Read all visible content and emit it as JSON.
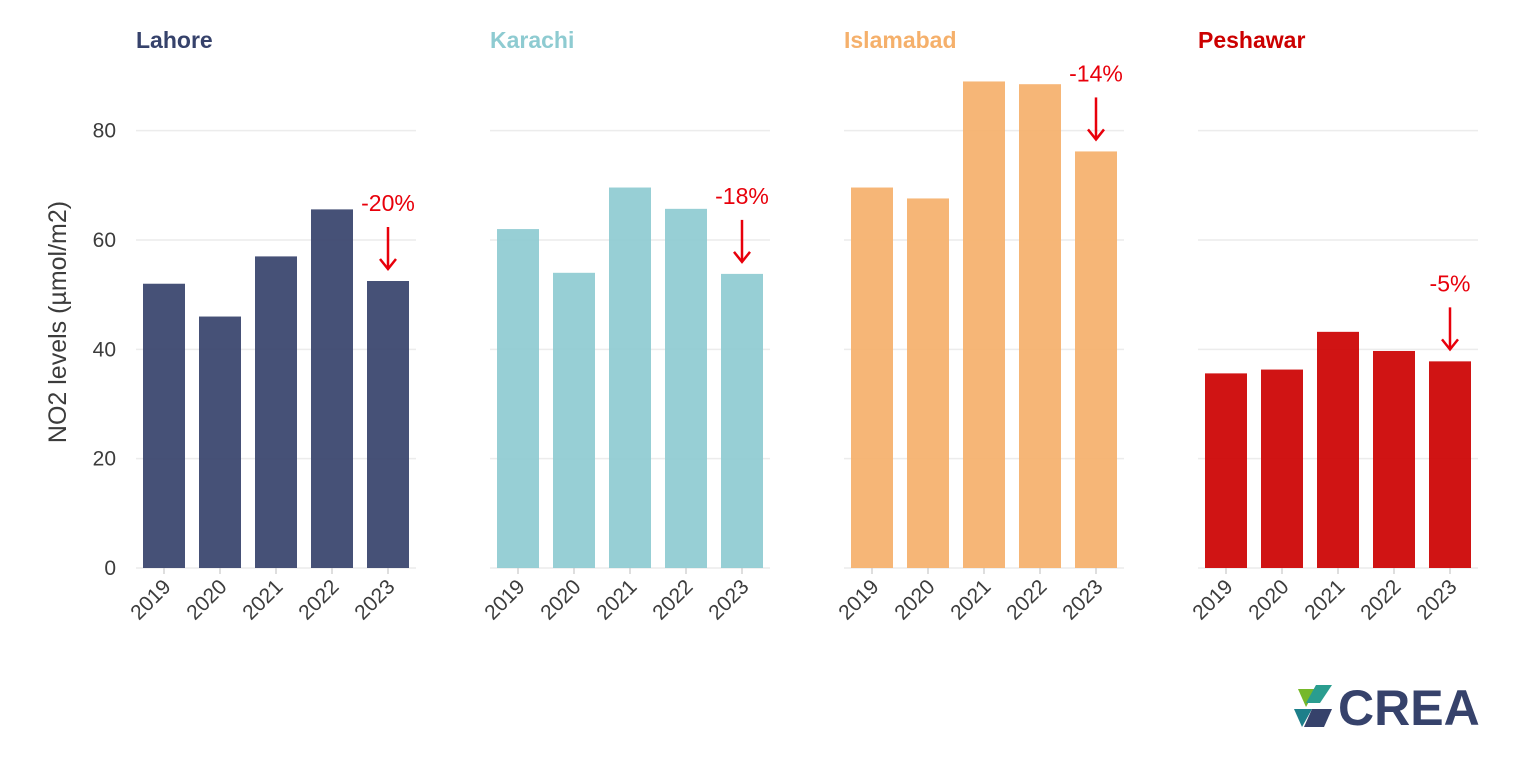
{
  "chart_data": {
    "type": "bar",
    "ylabel": "NO2 levels (µmol/m2)",
    "ylim": [
      0,
      90
    ],
    "yticks": [
      0,
      20,
      40,
      60,
      80
    ],
    "grid": true,
    "categories": [
      "2019",
      "2020",
      "2021",
      "2022",
      "2023"
    ],
    "panels": [
      {
        "name": "Lahore",
        "color": "#36426b",
        "values": [
          52.0,
          46.0,
          57.0,
          65.6,
          52.5
        ],
        "annotation": "-20%"
      },
      {
        "name": "Karachi",
        "color": "#8ecbd1",
        "values": [
          62.0,
          54.0,
          69.6,
          65.7,
          53.8
        ],
        "annotation": "-18%"
      },
      {
        "name": "Islamabad",
        "color": "#f5b06b",
        "values": [
          69.6,
          67.6,
          89.0,
          88.5,
          76.2
        ],
        "annotation": "-14%"
      },
      {
        "name": "Peshawar",
        "color": "#cc0000",
        "values": [
          35.6,
          36.3,
          43.2,
          39.7,
          37.8
        ],
        "annotation": "-5%"
      }
    ]
  },
  "logo": {
    "text": "CREA"
  }
}
